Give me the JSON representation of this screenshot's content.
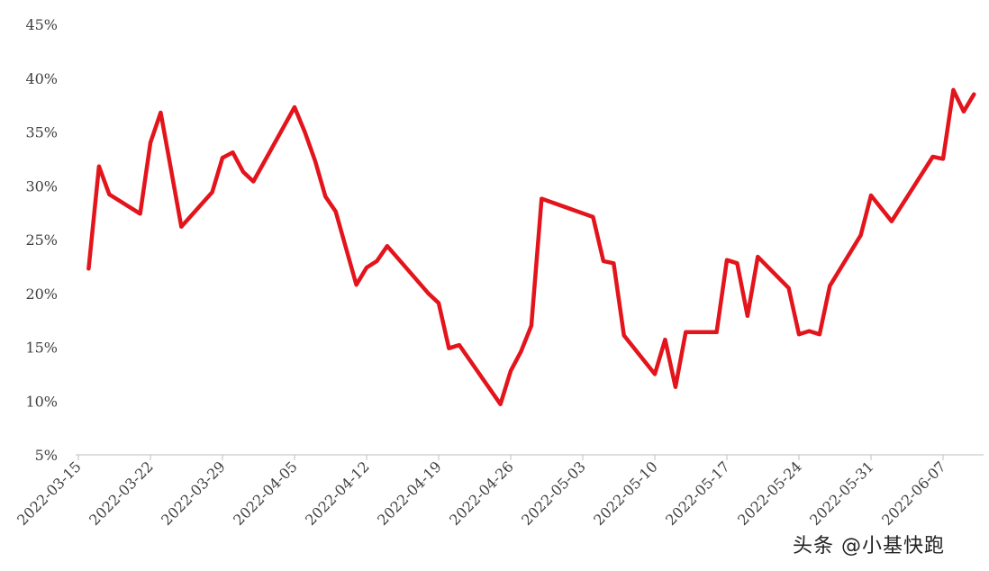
{
  "chart_data": {
    "type": "line",
    "title": "",
    "xlabel": "",
    "ylabel": "",
    "ylim": [
      5,
      45
    ],
    "y_ticks": [
      "5%",
      "10%",
      "15%",
      "20%",
      "25%",
      "30%",
      "35%",
      "40%",
      "45%"
    ],
    "y_tick_values": [
      5,
      10,
      15,
      20,
      25,
      30,
      35,
      40,
      45
    ],
    "x_ticks": [
      "2022-03-15",
      "2022-03-22",
      "2022-03-29",
      "2022-04-05",
      "2022-04-12",
      "2022-04-19",
      "2022-04-26",
      "2022-05-03",
      "2022-05-10",
      "2022-05-17",
      "2022-05-24",
      "2022-05-31",
      "2022-06-07"
    ],
    "grid": false,
    "legend": "none",
    "series": [
      {
        "color": "#e3141b",
        "points": [
          [
            "2022-03-16",
            22.3
          ],
          [
            "2022-03-17",
            31.8
          ],
          [
            "2022-03-18",
            29.2
          ],
          [
            "2022-03-21",
            27.4
          ],
          [
            "2022-03-22",
            34.0
          ],
          [
            "2022-03-23",
            36.8
          ],
          [
            "2022-03-24",
            31.5
          ],
          [
            "2022-03-25",
            26.2
          ],
          [
            "2022-03-28",
            29.4
          ],
          [
            "2022-03-29",
            32.6
          ],
          [
            "2022-03-30",
            33.1
          ],
          [
            "2022-03-31",
            31.3
          ],
          [
            "2022-04-01",
            30.4
          ],
          [
            "2022-04-05",
            37.3
          ],
          [
            "2022-04-06",
            35.0
          ],
          [
            "2022-04-07",
            32.3
          ],
          [
            "2022-04-08",
            29.0
          ],
          [
            "2022-04-09",
            27.6
          ],
          [
            "2022-04-11",
            20.8
          ],
          [
            "2022-04-12",
            22.4
          ],
          [
            "2022-04-13",
            23.0
          ],
          [
            "2022-04-14",
            24.4
          ],
          [
            "2022-04-18",
            20.0
          ],
          [
            "2022-04-19",
            19.1
          ],
          [
            "2022-04-20",
            14.9
          ],
          [
            "2022-04-21",
            15.2
          ],
          [
            "2022-04-25",
            9.7
          ],
          [
            "2022-04-26",
            12.8
          ],
          [
            "2022-04-27",
            14.6
          ],
          [
            "2022-04-28",
            17.0
          ],
          [
            "2022-04-29",
            28.8
          ],
          [
            "2022-05-04",
            27.1
          ],
          [
            "2022-05-05",
            23.0
          ],
          [
            "2022-05-06",
            22.8
          ],
          [
            "2022-05-07",
            16.1
          ],
          [
            "2022-05-10",
            12.5
          ],
          [
            "2022-05-11",
            15.7
          ],
          [
            "2022-05-12",
            11.3
          ],
          [
            "2022-05-13",
            16.4
          ],
          [
            "2022-05-16",
            16.4
          ],
          [
            "2022-05-17",
            23.1
          ],
          [
            "2022-05-18",
            22.8
          ],
          [
            "2022-05-19",
            17.9
          ],
          [
            "2022-05-20",
            23.4
          ],
          [
            "2022-05-23",
            20.5
          ],
          [
            "2022-05-24",
            16.2
          ],
          [
            "2022-05-25",
            16.5
          ],
          [
            "2022-05-26",
            16.2
          ],
          [
            "2022-05-27",
            20.7
          ],
          [
            "2022-05-30",
            25.4
          ],
          [
            "2022-05-31",
            29.1
          ],
          [
            "2022-06-02",
            26.7
          ],
          [
            "2022-06-06",
            32.7
          ],
          [
            "2022-06-07",
            32.5
          ],
          [
            "2022-06-08",
            38.9
          ],
          [
            "2022-06-09",
            36.9
          ],
          [
            "2022-06-10",
            38.5
          ]
        ]
      }
    ]
  },
  "watermark": "头条 @小基快跑"
}
